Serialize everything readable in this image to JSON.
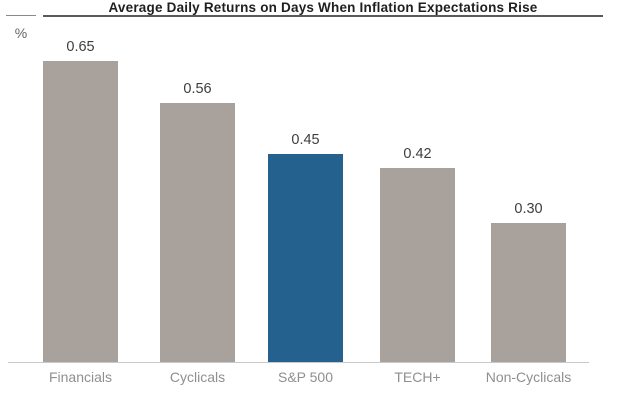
{
  "chart_data": {
    "type": "bar",
    "title": "Average Daily Returns on Days When Inflation Expectations Rise",
    "unit_label": "%",
    "categories": [
      "Financials",
      "Cyclicals",
      "S&P 500",
      "TECH+",
      "Non-Cyclicals"
    ],
    "values": [
      0.65,
      0.56,
      0.45,
      0.42,
      0.3
    ],
    "value_labels": [
      "0.65",
      "0.56",
      "0.45",
      "0.42",
      "0.30"
    ],
    "highlighted_category": "S&P 500",
    "ylabel": "",
    "xlabel": "",
    "ylim": [
      0,
      0.7
    ],
    "grid": false,
    "legend": "none",
    "colors": {
      "bar_default": "#A9A29C",
      "bar_highlight": "#24618E",
      "title_text": "#1F1F1F",
      "title_rule": "#5A5A5A",
      "value_label": "#3E3E3E",
      "category_label": "#8F8F8F",
      "axis_line": "#C9C9C9",
      "background": "#FFFFFF"
    }
  }
}
